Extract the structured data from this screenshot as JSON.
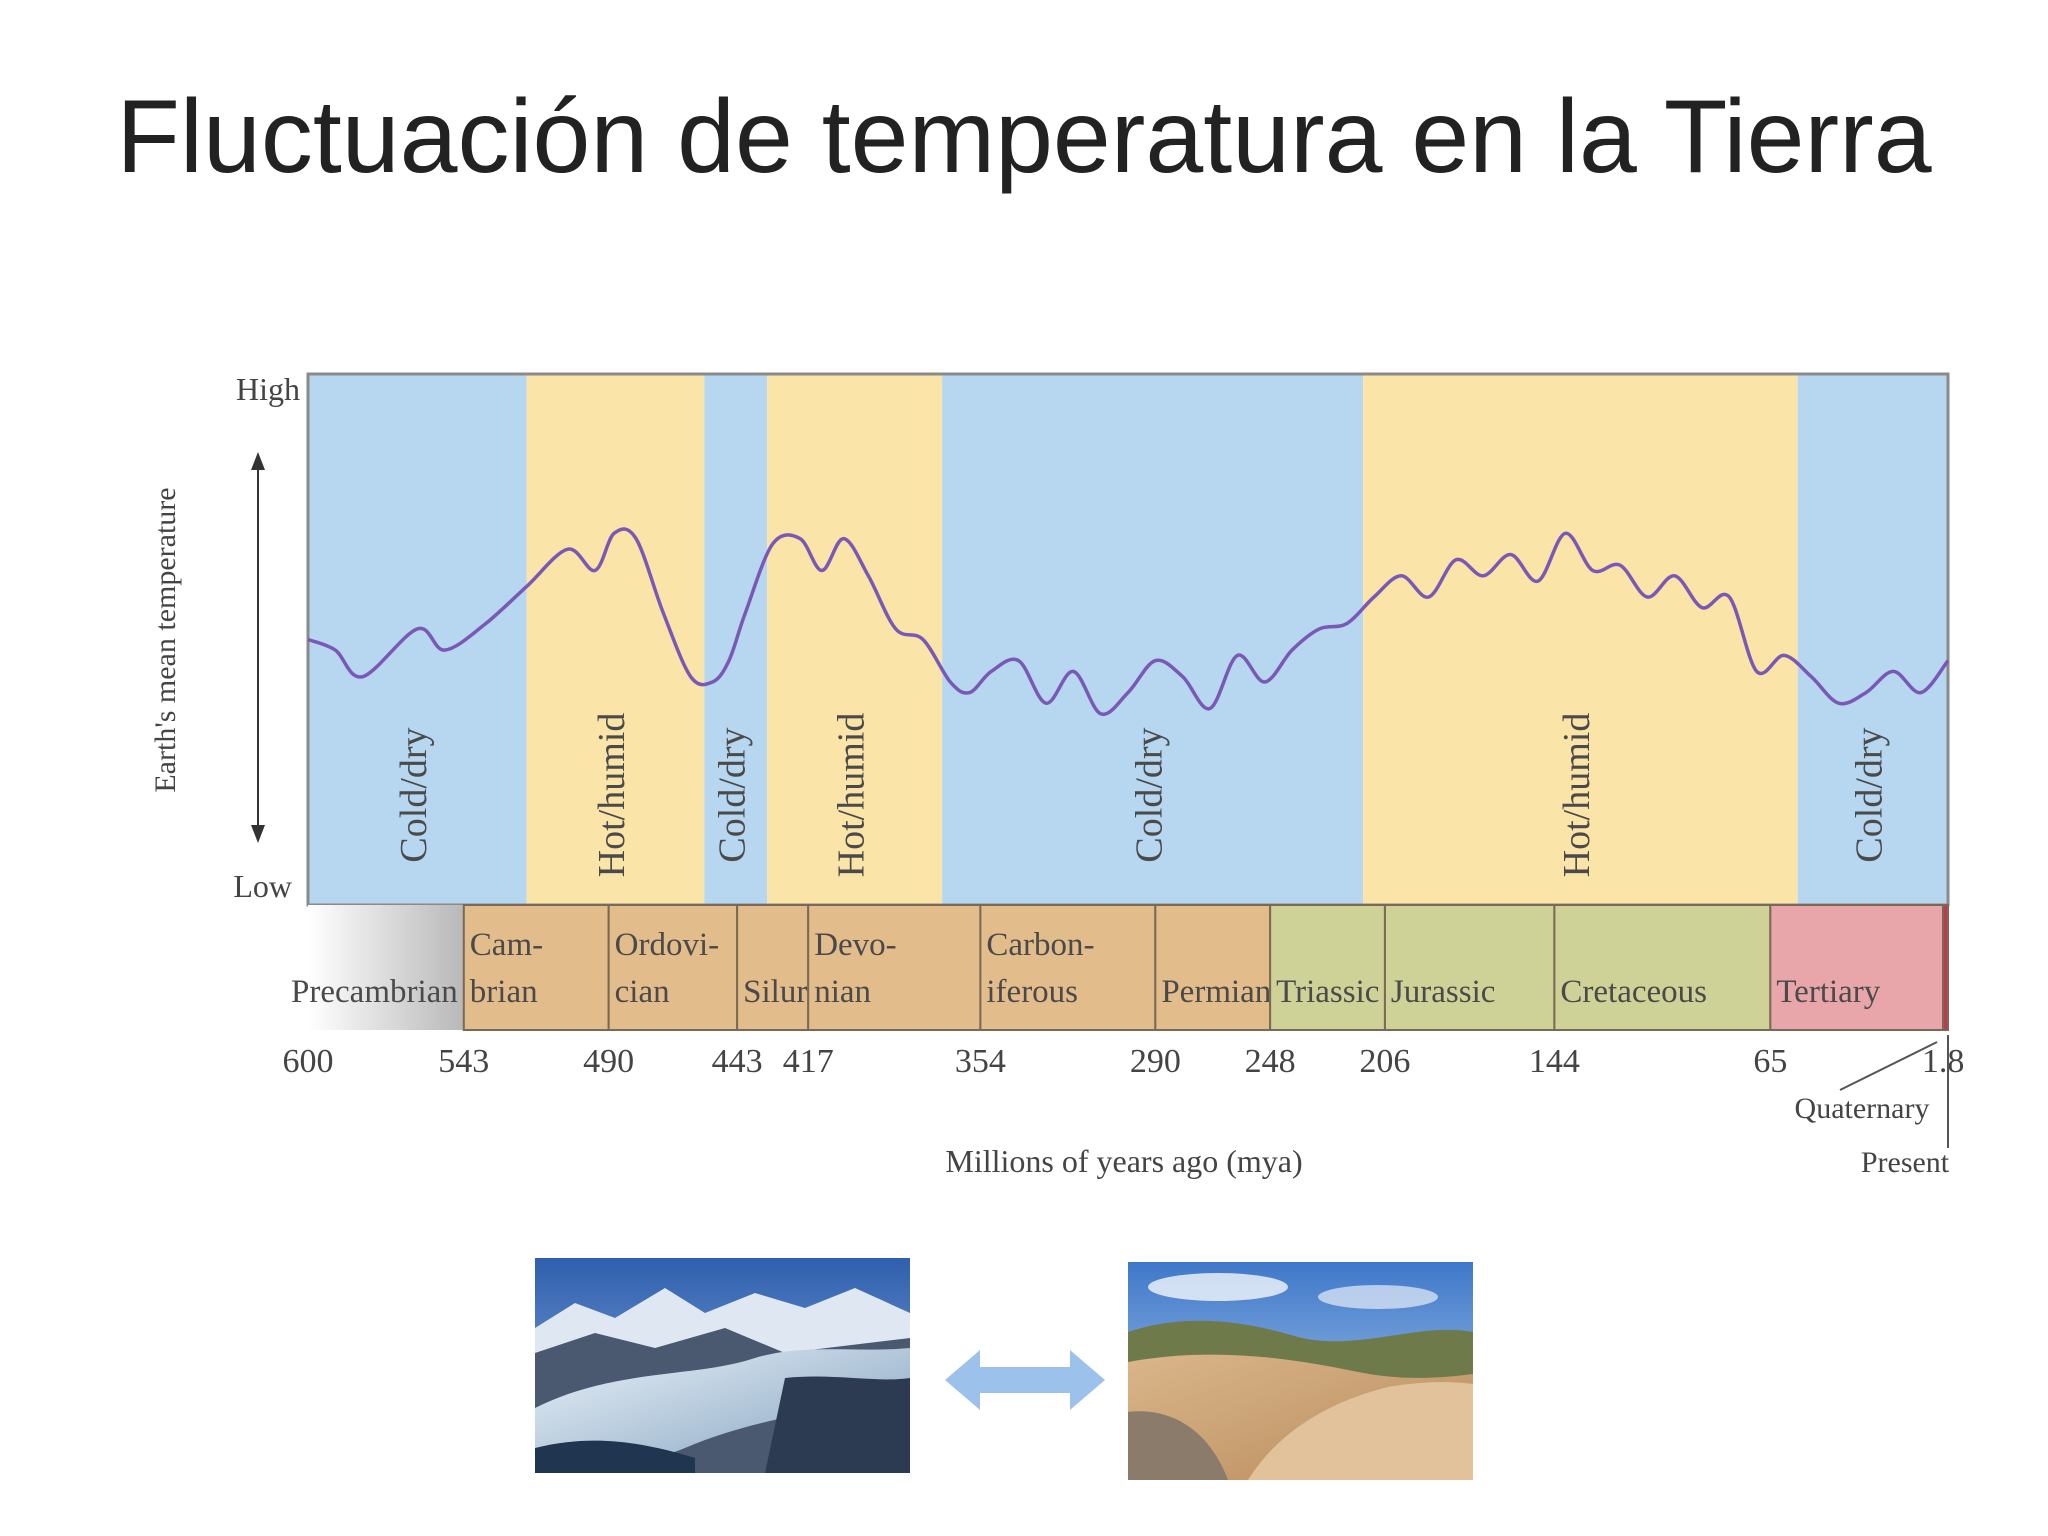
{
  "title": "Fluctuación de temperatura en la Tierra",
  "chart_data": {
    "type": "line",
    "ylabel": "Earth's mean temperature",
    "xlabel": "Millions of years ago (mya)",
    "y_axis_labels": {
      "high": "High",
      "low": "Low"
    },
    "x_range": [
      600,
      0
    ],
    "y_range": [
      0,
      1
    ],
    "x_ticks": [
      "600",
      "543",
      "490",
      "443",
      "417",
      "354",
      "290",
      "248",
      "206",
      "144",
      "65",
      "1.8"
    ],
    "x_tick_values": [
      600,
      543,
      490,
      443,
      417,
      354,
      290,
      248,
      206,
      144,
      65,
      1.8
    ],
    "climate_bands": [
      {
        "label": "Cold/dry",
        "start": 600,
        "end": 520,
        "kind": "cold"
      },
      {
        "label": "Hot/humid",
        "start": 520,
        "end": 455,
        "kind": "hot"
      },
      {
        "label": "Cold/dry",
        "start": 455,
        "end": 432,
        "kind": "cold"
      },
      {
        "label": "Hot/humid",
        "start": 432,
        "end": 368,
        "kind": "hot"
      },
      {
        "label": "Cold/dry",
        "start": 368,
        "end": 214,
        "kind": "cold"
      },
      {
        "label": "Hot/humid",
        "start": 214,
        "end": 55,
        "kind": "hot"
      },
      {
        "label": "Cold/dry",
        "start": 55,
        "end": 0,
        "kind": "cold"
      }
    ],
    "periods": [
      {
        "name": "Precambrian",
        "start": 600,
        "end": 543,
        "kind": "precambrian"
      },
      {
        "name": "Cam-\nbrian",
        "start": 543,
        "end": 490,
        "kind": "paleozoic"
      },
      {
        "name": "Ordovi-\ncian",
        "start": 490,
        "end": 443,
        "kind": "paleozoic"
      },
      {
        "name": "Silurian",
        "start": 443,
        "end": 417,
        "kind": "paleozoic"
      },
      {
        "name": "Devo-\nnian",
        "start": 417,
        "end": 354,
        "kind": "paleozoic"
      },
      {
        "name": "Carbon-\niferous",
        "start": 354,
        "end": 290,
        "kind": "paleozoic"
      },
      {
        "name": "Permian",
        "start": 290,
        "end": 248,
        "kind": "paleozoic"
      },
      {
        "name": "Triassic",
        "start": 248,
        "end": 206,
        "kind": "mesozoic"
      },
      {
        "name": "Jurassic",
        "start": 206,
        "end": 144,
        "kind": "mesozoic"
      },
      {
        "name": "Cretaceous",
        "start": 144,
        "end": 65,
        "kind": "mesozoic"
      },
      {
        "name": "Tertiary",
        "start": 65,
        "end": 1.8,
        "kind": "cenozoic"
      },
      {
        "name": "",
        "start": 1.8,
        "end": 0,
        "kind": "quaternary"
      }
    ],
    "annotations": {
      "quaternary": "Quaternary",
      "present": "Present"
    },
    "series": [
      {
        "x": [
          600,
          590,
          580,
          560,
          550,
          535,
          520,
          505,
          495,
          488,
          480,
          470,
          460,
          452,
          446,
          440,
          430,
          420,
          412,
          404,
          395,
          385,
          375,
          365,
          358,
          350,
          340,
          330,
          320,
          310,
          300,
          290,
          280,
          270,
          260,
          250,
          240,
          230,
          220,
          210,
          200,
          190,
          180,
          170,
          160,
          150,
          140,
          130,
          120,
          110,
          100,
          90,
          80,
          70,
          60,
          50,
          40,
          30,
          20,
          10,
          0
        ],
        "y": [
          0.5,
          0.48,
          0.43,
          0.52,
          0.48,
          0.53,
          0.6,
          0.67,
          0.63,
          0.7,
          0.69,
          0.55,
          0.43,
          0.42,
          0.46,
          0.55,
          0.68,
          0.69,
          0.63,
          0.69,
          0.62,
          0.52,
          0.5,
          0.42,
          0.4,
          0.44,
          0.46,
          0.38,
          0.44,
          0.36,
          0.4,
          0.46,
          0.43,
          0.37,
          0.47,
          0.42,
          0.48,
          0.52,
          0.53,
          0.58,
          0.62,
          0.58,
          0.65,
          0.62,
          0.66,
          0.61,
          0.7,
          0.63,
          0.64,
          0.58,
          0.62,
          0.56,
          0.58,
          0.44,
          0.47,
          0.43,
          0.38,
          0.4,
          0.44,
          0.4,
          0.46
        ]
      }
    ]
  },
  "images": {
    "glacier": "glacier-photo",
    "desert": "desert-photo",
    "arrow": "double-arrow-icon"
  },
  "colors": {
    "cold": "#b6d7ef",
    "hot": "#fae4a8",
    "curve": "#7a58b6",
    "paleozoic": "#e3bc8b",
    "mesozoic": "#cfd296",
    "cenozoic": "#e8a6aa",
    "quaternary": "#c9344f",
    "arrow": "#9cc2ec"
  }
}
